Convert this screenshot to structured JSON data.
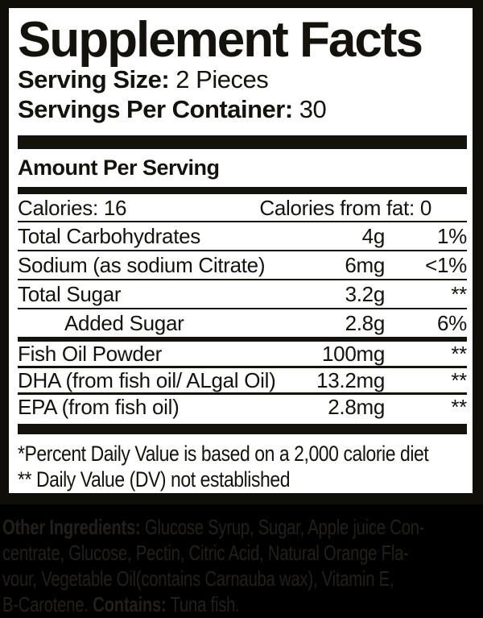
{
  "panel": {
    "title": "Supplement Facts",
    "serving_size_label": "Serving Size:",
    "serving_size_value": " 2 Pieces",
    "servings_per_container_label": "Servings Per Container:",
    "servings_per_container_value": " 30",
    "amount_per_serving": "Amount Per Serving",
    "calories": "Calories: 16",
    "calories_from_fat": "Calories from fat: 0",
    "footnote_percent_dv": "*Percent Daily Value is based on a 2,000 calorie diet",
    "footnote_dv_not_established": "** Daily Value (DV) not established"
  },
  "table": {
    "rows": [
      {
        "name": "Total Carbohydrates",
        "amount": "4g",
        "daily_value": "1%"
      },
      {
        "name": "Sodium (as sodium Citrate)",
        "amount": "6mg",
        "daily_value": "<1%"
      },
      {
        "name": "Total Sugar",
        "amount": "3.2g",
        "daily_value": "**"
      },
      {
        "name": "Added Sugar",
        "amount": "2.8g",
        "daily_value": "6%"
      },
      {
        "name": "Fish Oil Powder",
        "amount": "100mg",
        "daily_value": "**"
      },
      {
        "name": "DHA (from fish oil/ ALgal Oil)",
        "amount": "13.2mg",
        "daily_value": "**"
      },
      {
        "name": "EPA (from fish oil)",
        "amount": "2.8mg",
        "daily_value": "**"
      }
    ]
  },
  "ingredients": {
    "label_bold": "Other Ingredients:",
    "line1_rest": " Glucose Syrup, Sugar, Apple juice Con-",
    "line2": "centrate, Glucose, Pectin, Citric Acid, Natural Orange Fla-",
    "line3": "vour, Vegetable Oil(contains Carnauba wax), Vitamin E,",
    "line4_pre": "B-Carotene. ",
    "contains_bold": "Contains:",
    "line4_rest": " Tuna fish."
  },
  "colors": {
    "page_background": "#000000",
    "panel_background": "#ffffff",
    "ink": "#14120d",
    "ingredients_text": "#23201a"
  }
}
